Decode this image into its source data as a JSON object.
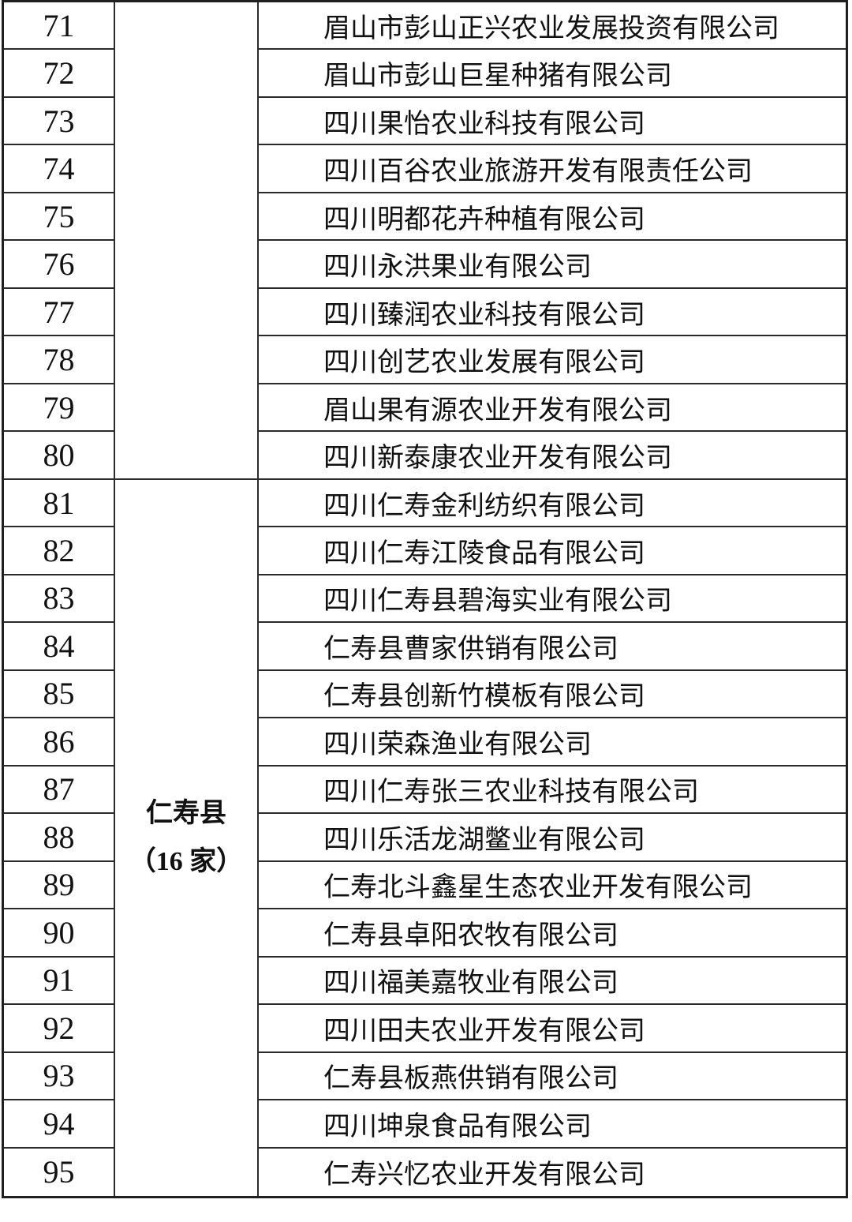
{
  "table": {
    "region_blank": {
      "label": ""
    },
    "region": {
      "name": "仁寿县",
      "count_label": "（16 家）"
    },
    "rows": [
      {
        "no": "71",
        "company": "眉山市彭山正兴农业发展投资有限公司"
      },
      {
        "no": "72",
        "company": "眉山市彭山巨星种猪有限公司"
      },
      {
        "no": "73",
        "company": "四川果怡农业科技有限公司"
      },
      {
        "no": "74",
        "company": "四川百谷农业旅游开发有限责任公司"
      },
      {
        "no": "75",
        "company": "四川明都花卉种植有限公司"
      },
      {
        "no": "76",
        "company": "四川永洪果业有限公司"
      },
      {
        "no": "77",
        "company": "四川臻润农业科技有限公司"
      },
      {
        "no": "78",
        "company": "四川创艺农业发展有限公司"
      },
      {
        "no": "79",
        "company": "眉山果有源农业开发有限公司"
      },
      {
        "no": "80",
        "company": "四川新泰康农业开发有限公司"
      },
      {
        "no": "81",
        "company": "四川仁寿金利纺织有限公司"
      },
      {
        "no": "82",
        "company": "四川仁寿江陵食品有限公司"
      },
      {
        "no": "83",
        "company": "四川仁寿县碧海实业有限公司"
      },
      {
        "no": "84",
        "company": "仁寿县曹家供销有限公司"
      },
      {
        "no": "85",
        "company": "仁寿县创新竹模板有限公司"
      },
      {
        "no": "86",
        "company": "四川荣森渔业有限公司"
      },
      {
        "no": "87",
        "company": "四川仁寿张三农业科技有限公司"
      },
      {
        "no": "88",
        "company": "四川乐活龙湖鳖业有限公司"
      },
      {
        "no": "89",
        "company": "仁寿北斗鑫星生态农业开发有限公司"
      },
      {
        "no": "90",
        "company": "仁寿县卓阳农牧有限公司"
      },
      {
        "no": "91",
        "company": "四川福美嘉牧业有限公司"
      },
      {
        "no": "92",
        "company": "四川田夫农业开发有限公司"
      },
      {
        "no": "93",
        "company": "仁寿县板燕供销有限公司"
      },
      {
        "no": "94",
        "company": "四川坤泉食品有限公司"
      },
      {
        "no": "95",
        "company": "仁寿兴忆农业开发有限公司"
      }
    ]
  }
}
